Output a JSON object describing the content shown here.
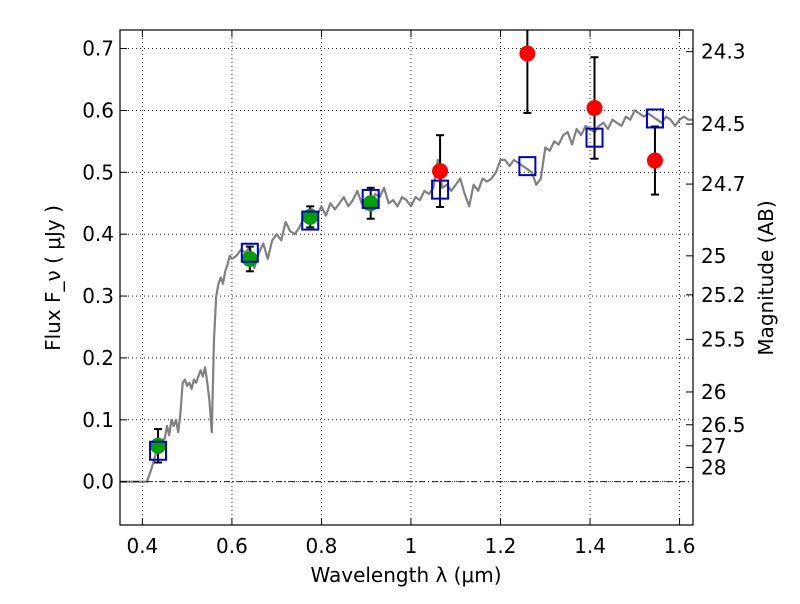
{
  "chart_data": {
    "type": "scatter",
    "xlabel": "Wavelength  λ (μm)",
    "ylabel": "Flux  F_ν  ( μJy )",
    "y2label": "Magnitude (AB)",
    "xlim": [
      0.35,
      1.63
    ],
    "ylim": [
      -0.07,
      0.73
    ],
    "grid": true,
    "x_ticks": [
      {
        "value": 0.4,
        "label": "0.4"
      },
      {
        "value": 0.6,
        "label": "0.6"
      },
      {
        "value": 0.8,
        "label": "0.8"
      },
      {
        "value": 1.0,
        "label": "1"
      },
      {
        "value": 1.2,
        "label": "1.2"
      },
      {
        "value": 1.4,
        "label": "1.4"
      },
      {
        "value": 1.6,
        "label": "1.6"
      }
    ],
    "y_ticks": [
      {
        "value": 0.0,
        "label": "0.0"
      },
      {
        "value": 0.1,
        "label": "0.1"
      },
      {
        "value": 0.2,
        "label": "0.2"
      },
      {
        "value": 0.3,
        "label": "0.3"
      },
      {
        "value": 0.4,
        "label": "0.4"
      },
      {
        "value": 0.5,
        "label": "0.5"
      },
      {
        "value": 0.6,
        "label": "0.6"
      },
      {
        "value": 0.7,
        "label": "0.7"
      }
    ],
    "magnitude_ticks": [
      {
        "value": 0.695,
        "label": "24.3"
      },
      {
        "value": 0.578,
        "label": "24.5"
      },
      {
        "value": 0.481,
        "label": "24.7"
      },
      {
        "value": 0.365,
        "label": "25"
      },
      {
        "value": 0.302,
        "label": "25.2"
      },
      {
        "value": 0.23,
        "label": "25.5"
      },
      {
        "value": 0.145,
        "label": "26"
      },
      {
        "value": 0.092,
        "label": "26.5"
      },
      {
        "value": 0.058,
        "label": "27"
      },
      {
        "value": 0.023,
        "label": "28"
      }
    ],
    "series": [
      {
        "marker": "circle",
        "color": "#00a000",
        "points": [
          {
            "x": 0.435,
            "y": 0.058,
            "err": 0.027
          },
          {
            "x": 0.64,
            "y": 0.36,
            "err": 0.02
          },
          {
            "x": 0.775,
            "y": 0.428,
            "err": 0.017
          },
          {
            "x": 0.91,
            "y": 0.45,
            "err": 0.025
          }
        ]
      },
      {
        "marker": "circle",
        "color": "#ff0000",
        "points": [
          {
            "x": 1.065,
            "y": 0.502,
            "err_low": 0.058,
            "err_high": 0.058
          },
          {
            "x": 1.26,
            "y": 0.692,
            "err_low": 0.096,
            "err_high": 0.05
          },
          {
            "x": 1.41,
            "y": 0.604,
            "err_low": 0.082,
            "err_high": 0.082
          },
          {
            "x": 1.545,
            "y": 0.519,
            "err_low": 0.055,
            "err_high": 0.055
          }
        ]
      },
      {
        "marker": "open-square",
        "color": "#0000cc",
        "points": [
          {
            "x": 0.435,
            "y": 0.05
          },
          {
            "x": 0.64,
            "y": 0.37
          },
          {
            "x": 0.775,
            "y": 0.422
          },
          {
            "x": 0.91,
            "y": 0.457
          },
          {
            "x": 1.065,
            "y": 0.472
          },
          {
            "x": 1.26,
            "y": 0.51
          },
          {
            "x": 1.41,
            "y": 0.556
          },
          {
            "x": 1.545,
            "y": 0.587
          }
        ]
      },
      {
        "marker": "line",
        "color": "#808080",
        "points": [
          [
            0.35,
            0.0
          ],
          [
            0.41,
            0.0
          ],
          [
            0.42,
            0.02
          ],
          [
            0.43,
            0.045
          ],
          [
            0.44,
            0.062
          ],
          [
            0.45,
            0.07
          ],
          [
            0.455,
            0.09
          ],
          [
            0.46,
            0.075
          ],
          [
            0.465,
            0.1
          ],
          [
            0.47,
            0.09
          ],
          [
            0.475,
            0.1
          ],
          [
            0.48,
            0.08
          ],
          [
            0.485,
            0.11
          ],
          [
            0.49,
            0.16
          ],
          [
            0.495,
            0.165
          ],
          [
            0.5,
            0.155
          ],
          [
            0.505,
            0.16
          ],
          [
            0.51,
            0.15
          ],
          [
            0.515,
            0.165
          ],
          [
            0.52,
            0.16
          ],
          [
            0.525,
            0.17
          ],
          [
            0.53,
            0.18
          ],
          [
            0.535,
            0.17
          ],
          [
            0.54,
            0.185
          ],
          [
            0.545,
            0.16
          ],
          [
            0.55,
            0.13
          ],
          [
            0.555,
            0.08
          ],
          [
            0.56,
            0.23
          ],
          [
            0.565,
            0.3
          ],
          [
            0.57,
            0.32
          ],
          [
            0.575,
            0.33
          ],
          [
            0.58,
            0.32
          ],
          [
            0.585,
            0.34
          ],
          [
            0.59,
            0.35
          ],
          [
            0.595,
            0.365
          ],
          [
            0.6,
            0.36
          ],
          [
            0.61,
            0.365
          ],
          [
            0.62,
            0.375
          ],
          [
            0.63,
            0.37
          ],
          [
            0.64,
            0.38
          ],
          [
            0.65,
            0.345
          ],
          [
            0.66,
            0.37
          ],
          [
            0.67,
            0.385
          ],
          [
            0.68,
            0.36
          ],
          [
            0.69,
            0.39
          ],
          [
            0.7,
            0.4
          ],
          [
            0.71,
            0.39
          ],
          [
            0.72,
            0.42
          ],
          [
            0.73,
            0.405
          ],
          [
            0.74,
            0.4
          ],
          [
            0.75,
            0.41
          ],
          [
            0.76,
            0.425
          ],
          [
            0.77,
            0.42
          ],
          [
            0.78,
            0.44
          ],
          [
            0.79,
            0.43
          ],
          [
            0.8,
            0.445
          ],
          [
            0.81,
            0.43
          ],
          [
            0.82,
            0.45
          ],
          [
            0.83,
            0.44
          ],
          [
            0.84,
            0.45
          ],
          [
            0.85,
            0.46
          ],
          [
            0.86,
            0.445
          ],
          [
            0.87,
            0.455
          ],
          [
            0.88,
            0.47
          ],
          [
            0.89,
            0.45
          ],
          [
            0.9,
            0.44
          ],
          [
            0.91,
            0.45
          ],
          [
            0.92,
            0.465
          ],
          [
            0.93,
            0.46
          ],
          [
            0.94,
            0.475
          ],
          [
            0.95,
            0.45
          ],
          [
            0.96,
            0.455
          ],
          [
            0.97,
            0.445
          ],
          [
            0.98,
            0.46
          ],
          [
            0.99,
            0.455
          ],
          [
            1.0,
            0.445
          ],
          [
            1.01,
            0.46
          ],
          [
            1.02,
            0.455
          ],
          [
            1.03,
            0.47
          ],
          [
            1.04,
            0.465
          ],
          [
            1.05,
            0.475
          ],
          [
            1.06,
            0.52
          ],
          [
            1.07,
            0.475
          ],
          [
            1.08,
            0.48
          ],
          [
            1.09,
            0.47
          ],
          [
            1.1,
            0.48
          ],
          [
            1.11,
            0.49
          ],
          [
            1.12,
            0.465
          ],
          [
            1.13,
            0.445
          ],
          [
            1.14,
            0.48
          ],
          [
            1.15,
            0.47
          ],
          [
            1.16,
            0.49
          ],
          [
            1.17,
            0.485
          ],
          [
            1.18,
            0.49
          ],
          [
            1.19,
            0.5
          ],
          [
            1.2,
            0.52
          ],
          [
            1.21,
            0.52
          ],
          [
            1.22,
            0.51
          ],
          [
            1.23,
            0.52
          ],
          [
            1.24,
            0.515
          ],
          [
            1.25,
            0.51
          ],
          [
            1.26,
            0.505
          ],
          [
            1.27,
            0.5
          ],
          [
            1.28,
            0.48
          ],
          [
            1.29,
            0.49
          ],
          [
            1.3,
            0.54
          ],
          [
            1.31,
            0.535
          ],
          [
            1.32,
            0.55
          ],
          [
            1.33,
            0.545
          ],
          [
            1.34,
            0.56
          ],
          [
            1.35,
            0.565
          ],
          [
            1.36,
            0.545
          ],
          [
            1.37,
            0.57
          ],
          [
            1.38,
            0.56
          ],
          [
            1.39,
            0.575
          ],
          [
            1.4,
            0.57
          ],
          [
            1.41,
            0.565
          ],
          [
            1.42,
            0.575
          ],
          [
            1.43,
            0.58
          ],
          [
            1.44,
            0.57
          ],
          [
            1.45,
            0.585
          ],
          [
            1.46,
            0.58
          ],
          [
            1.47,
            0.575
          ],
          [
            1.48,
            0.59
          ],
          [
            1.49,
            0.585
          ],
          [
            1.5,
            0.6
          ],
          [
            1.51,
            0.595
          ],
          [
            1.52,
            0.59
          ],
          [
            1.53,
            0.595
          ],
          [
            1.54,
            0.59
          ],
          [
            1.55,
            0.585
          ],
          [
            1.56,
            0.58
          ],
          [
            1.57,
            0.59
          ],
          [
            1.58,
            0.585
          ],
          [
            1.59,
            0.575
          ],
          [
            1.6,
            0.585
          ],
          [
            1.61,
            0.59
          ],
          [
            1.62,
            0.585
          ],
          [
            1.63,
            0.585
          ]
        ]
      }
    ]
  }
}
